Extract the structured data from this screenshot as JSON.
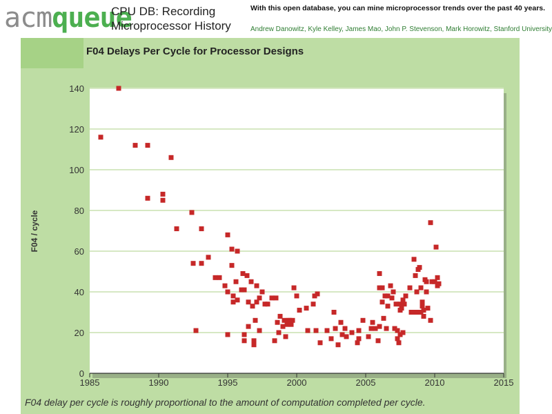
{
  "header": {
    "logo_acm": "acm",
    "logo_queue": "queue",
    "title_line1": "CPU DB: Recording",
    "title_line2": "Microprocessor History",
    "tagline": "With this open database, you can mine microprocessor trends over the past 40 years.",
    "authors": "Andrew Danowitz, Kyle Kelley, James Mao, John P. Stevenson, Mark Horowitz, Stanford University"
  },
  "caption": "F04 delay per cycle is roughly proportional to the amount of computation completed per cycle.",
  "colors": {
    "panel": "#bedda4",
    "panel_tab": "#a6d286",
    "point": "#c62828",
    "grid": "#d6e8c3",
    "logo_green": "#4caf50"
  },
  "chart_data": {
    "type": "scatter",
    "title": "F04 Delays Per Cycle for Processor Designs",
    "xlabel": "",
    "ylabel": "F04 / cycle",
    "xlim": [
      1985,
      2015
    ],
    "ylim": [
      0,
      140
    ],
    "xticks": [
      1985,
      1990,
      1995,
      2000,
      2005,
      2010,
      2015
    ],
    "yticks": [
      0,
      20,
      40,
      60,
      80,
      100,
      120,
      140
    ],
    "grid": "horizontal",
    "points": [
      [
        1985.8,
        116
      ],
      [
        1987.1,
        140
      ],
      [
        1988.3,
        112
      ],
      [
        1989.2,
        112
      ],
      [
        1989.2,
        86
      ],
      [
        1990.3,
        88
      ],
      [
        1990.3,
        85
      ],
      [
        1990.9,
        106
      ],
      [
        1991.3,
        71
      ],
      [
        1992.4,
        79
      ],
      [
        1992.5,
        54
      ],
      [
        1992.7,
        21
      ],
      [
        1993.1,
        71
      ],
      [
        1993.1,
        54
      ],
      [
        1993.6,
        57
      ],
      [
        1994.1,
        47
      ],
      [
        1994.4,
        47
      ],
      [
        1994.8,
        43
      ],
      [
        1995.0,
        68
      ],
      [
        1995.0,
        40
      ],
      [
        1995.0,
        19
      ],
      [
        1995.3,
        61
      ],
      [
        1995.3,
        53
      ],
      [
        1995.4,
        38
      ],
      [
        1995.4,
        35
      ],
      [
        1995.6,
        45
      ],
      [
        1995.7,
        60
      ],
      [
        1995.7,
        36
      ],
      [
        1996.0,
        41
      ],
      [
        1996.1,
        49
      ],
      [
        1996.2,
        41
      ],
      [
        1996.2,
        19
      ],
      [
        1996.2,
        16
      ],
      [
        1996.4,
        48
      ],
      [
        1996.5,
        35
      ],
      [
        1996.5,
        23
      ],
      [
        1996.7,
        45
      ],
      [
        1996.8,
        33
      ],
      [
        1996.9,
        16
      ],
      [
        1996.9,
        14
      ],
      [
        1997.0,
        26
      ],
      [
        1997.1,
        35
      ],
      [
        1997.1,
        43
      ],
      [
        1997.3,
        37
      ],
      [
        1997.3,
        21
      ],
      [
        1997.5,
        40
      ],
      [
        1997.7,
        34
      ],
      [
        1997.9,
        34
      ],
      [
        1998.2,
        37
      ],
      [
        1998.4,
        16
      ],
      [
        1998.5,
        37
      ],
      [
        1998.6,
        25
      ],
      [
        1998.7,
        20
      ],
      [
        1998.8,
        28
      ],
      [
        1999.0,
        23
      ],
      [
        1999.1,
        26
      ],
      [
        1999.2,
        18
      ],
      [
        1999.3,
        24
      ],
      [
        1999.4,
        26
      ],
      [
        1999.5,
        26
      ],
      [
        1999.6,
        24
      ],
      [
        1999.7,
        26
      ],
      [
        1999.8,
        42
      ],
      [
        2000.0,
        38
      ],
      [
        2000.2,
        31
      ],
      [
        2000.7,
        32
      ],
      [
        2000.8,
        21
      ],
      [
        2001.2,
        34
      ],
      [
        2001.3,
        38
      ],
      [
        2001.4,
        21
      ],
      [
        2001.5,
        39
      ],
      [
        2001.7,
        15
      ],
      [
        2002.2,
        21
      ],
      [
        2002.5,
        17
      ],
      [
        2002.7,
        30
      ],
      [
        2002.8,
        22
      ],
      [
        2003.0,
        14
      ],
      [
        2003.2,
        25
      ],
      [
        2003.3,
        19
      ],
      [
        2003.5,
        22
      ],
      [
        2003.6,
        18
      ],
      [
        2004.0,
        20
      ],
      [
        2004.4,
        15
      ],
      [
        2004.5,
        17
      ],
      [
        2004.5,
        21
      ],
      [
        2004.8,
        26
      ],
      [
        2005.2,
        18
      ],
      [
        2005.4,
        22
      ],
      [
        2005.5,
        25
      ],
      [
        2005.7,
        22
      ],
      [
        2005.9,
        16
      ],
      [
        2006.0,
        49
      ],
      [
        2006.0,
        42
      ],
      [
        2006.0,
        23
      ],
      [
        2006.2,
        42
      ],
      [
        2006.2,
        35
      ],
      [
        2006.3,
        27
      ],
      [
        2006.4,
        38
      ],
      [
        2006.5,
        22
      ],
      [
        2006.6,
        38
      ],
      [
        2006.6,
        33
      ],
      [
        2006.8,
        43
      ],
      [
        2006.9,
        37
      ],
      [
        2007.0,
        40
      ],
      [
        2007.1,
        22
      ],
      [
        2007.2,
        34
      ],
      [
        2007.3,
        21
      ],
      [
        2007.3,
        17
      ],
      [
        2007.4,
        15
      ],
      [
        2007.5,
        19
      ],
      [
        2007.5,
        34
      ],
      [
        2007.5,
        31
      ],
      [
        2007.6,
        32
      ],
      [
        2007.7,
        20
      ],
      [
        2007.7,
        36
      ],
      [
        2007.8,
        34
      ],
      [
        2007.9,
        38
      ],
      [
        2008.2,
        42
      ],
      [
        2008.3,
        30
      ],
      [
        2008.5,
        30
      ],
      [
        2008.5,
        56
      ],
      [
        2008.6,
        48
      ],
      [
        2008.7,
        30
      ],
      [
        2008.7,
        40
      ],
      [
        2008.8,
        51
      ],
      [
        2008.9,
        52
      ],
      [
        2009.0,
        30
      ],
      [
        2009.0,
        42
      ],
      [
        2009.1,
        35
      ],
      [
        2009.1,
        33
      ],
      [
        2009.2,
        31
      ],
      [
        2009.2,
        28
      ],
      [
        2009.3,
        46
      ],
      [
        2009.4,
        45
      ],
      [
        2009.4,
        40
      ],
      [
        2009.5,
        32
      ],
      [
        2009.7,
        26
      ],
      [
        2009.7,
        74
      ],
      [
        2009.8,
        45
      ],
      [
        2010.0,
        45
      ],
      [
        2010.1,
        62
      ],
      [
        2010.2,
        43
      ],
      [
        2010.2,
        47
      ],
      [
        2010.3,
        44
      ]
    ]
  }
}
